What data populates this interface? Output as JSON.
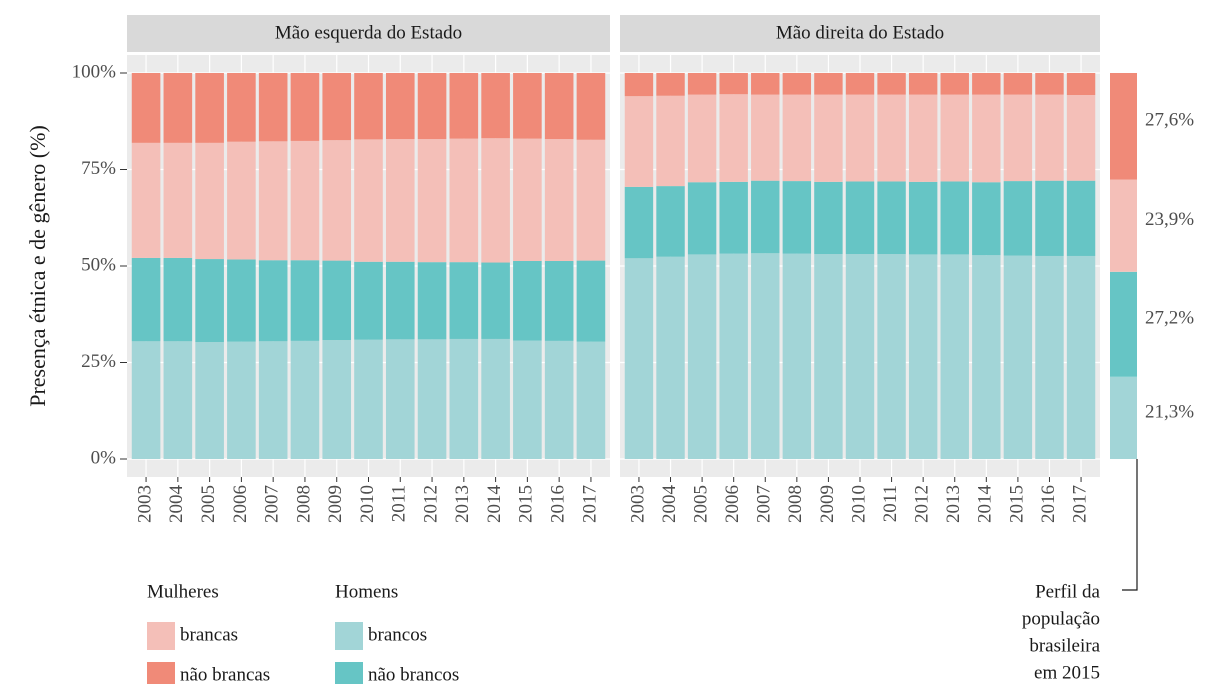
{
  "chart_data": {
    "type": "bar",
    "stacked": true,
    "y_label": "Presença étnica e de gênero (%)",
    "categories": [
      "2003",
      "2004",
      "2005",
      "2006",
      "2007",
      "2008",
      "2009",
      "2010",
      "2011",
      "2012",
      "2013",
      "2014",
      "2015",
      "2016",
      "2017"
    ],
    "ylim": [
      0,
      100
    ],
    "yticks": [
      {
        "value": 0,
        "label": "0%"
      },
      {
        "value": 25,
        "label": "25%"
      },
      {
        "value": 50,
        "label": "50%"
      },
      {
        "value": 75,
        "label": "75%"
      },
      {
        "value": 100,
        "label": "100%"
      }
    ],
    "grid": true,
    "facets": [
      {
        "title": "Mão esquerda do Estado",
        "series": [
          {
            "name": "brancos",
            "color": "#a2d5d7",
            "values": [
              30.5,
              30.5,
              30.3,
              30.4,
              30.5,
              30.6,
              30.8,
              30.9,
              31.0,
              31.0,
              31.1,
              31.1,
              30.7,
              30.6,
              30.4
            ]
          },
          {
            "name": "não brancos",
            "color": "#66c5c5",
            "values": [
              21.6,
              21.6,
              21.5,
              21.3,
              21.0,
              20.9,
              20.6,
              20.2,
              20.1,
              20.0,
              19.9,
              19.8,
              20.6,
              20.7,
              21.0
            ]
          },
          {
            "name": "brancas",
            "color": "#f4bfb8",
            "values": [
              29.8,
              29.8,
              30.1,
              30.5,
              30.8,
              30.9,
              31.2,
              31.7,
              31.8,
              31.9,
              32.0,
              32.2,
              31.7,
              31.6,
              31.3
            ]
          },
          {
            "name": "não brancas",
            "color": "#f08a78",
            "values": [
              18.1,
              18.1,
              18.1,
              17.8,
              17.7,
              17.6,
              17.4,
              17.2,
              17.1,
              17.1,
              17.0,
              16.9,
              17.0,
              17.1,
              17.3
            ]
          }
        ]
      },
      {
        "title": "Mão direita do Estado",
        "series": [
          {
            "name": "brancos",
            "color": "#a2d5d7",
            "values": [
              52.0,
              52.4,
              53.0,
              53.2,
              53.3,
              53.2,
              53.1,
              53.1,
              53.1,
              53.0,
              53.0,
              52.8,
              52.7,
              52.6,
              52.6
            ]
          },
          {
            "name": "não brancos",
            "color": "#66c5c5",
            "values": [
              18.5,
              18.3,
              18.7,
              18.6,
              18.8,
              18.8,
              18.7,
              18.8,
              18.8,
              18.8,
              18.9,
              18.9,
              19.3,
              19.5,
              19.5
            ]
          },
          {
            "name": "brancas",
            "color": "#f4bfb8",
            "values": [
              23.5,
              23.4,
              22.7,
              22.7,
              22.3,
              22.4,
              22.6,
              22.5,
              22.5,
              22.6,
              22.5,
              22.7,
              22.4,
              22.3,
              22.2
            ]
          },
          {
            "name": "não brancas",
            "color": "#f08a78",
            "values": [
              6.0,
              5.9,
              5.6,
              5.5,
              5.6,
              5.6,
              5.6,
              5.6,
              5.6,
              5.6,
              5.6,
              5.6,
              5.6,
              5.6,
              5.7
            ]
          }
        ]
      }
    ],
    "legend_groups": [
      "Mulheres",
      "Homens"
    ],
    "reference": {
      "values": [
        21.3,
        27.2,
        23.9,
        27.6
      ],
      "value_labels": [
        "21,3%",
        "27,2%",
        "23,9%",
        "27,6%"
      ],
      "colors": [
        "#a2d5d7",
        "#66c5c5",
        "#f4bfb8",
        "#f08a78"
      ],
      "annotation": [
        "Perfil da",
        "população",
        "brasileira",
        "em 2015"
      ]
    }
  }
}
